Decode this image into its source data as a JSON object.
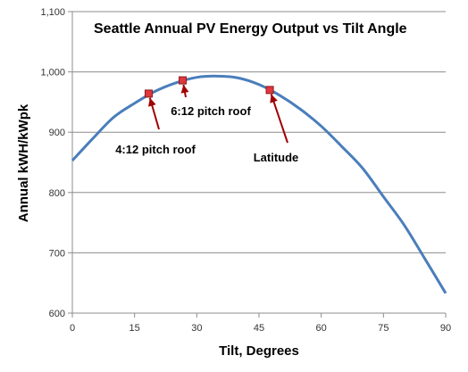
{
  "chart_data": {
    "type": "line",
    "title": "Seattle Annual PV Energy Output vs Tilt Angle",
    "xlabel": "Tilt, Degrees",
    "ylabel": "Annual kWH/kWpk",
    "xlim": [
      0,
      90
    ],
    "ylim": [
      600,
      1100
    ],
    "x_ticks": [
      0,
      15,
      30,
      45,
      60,
      75,
      90
    ],
    "y_ticks": [
      600,
      700,
      800,
      900,
      1000,
      1100
    ],
    "y_tick_labels": [
      "600",
      "700",
      "800",
      "900",
      "1,000",
      "1,100"
    ],
    "grid": "horizontal",
    "series": [
      {
        "color": "#4a7ebb",
        "x": [
          0,
          5,
          10,
          15,
          20,
          25,
          30,
          35,
          40,
          45,
          50,
          55,
          60,
          65,
          70,
          75,
          80,
          85,
          90
        ],
        "y": [
          853,
          890,
          925,
          948,
          968,
          982,
          991,
          993,
          990,
          979,
          961,
          938,
          910,
          876,
          840,
          793,
          746,
          690,
          633
        ]
      }
    ],
    "annotations": [
      {
        "label": "4:12 pitch roof",
        "x": 18.4,
        "y": 964
      },
      {
        "label": "6:12 pitch roof",
        "x": 26.6,
        "y": 986
      },
      {
        "label": "Latitude",
        "x": 47.6,
        "y": 970
      }
    ],
    "marker_color": "#e0383e",
    "arrow_color": "#a00000"
  }
}
